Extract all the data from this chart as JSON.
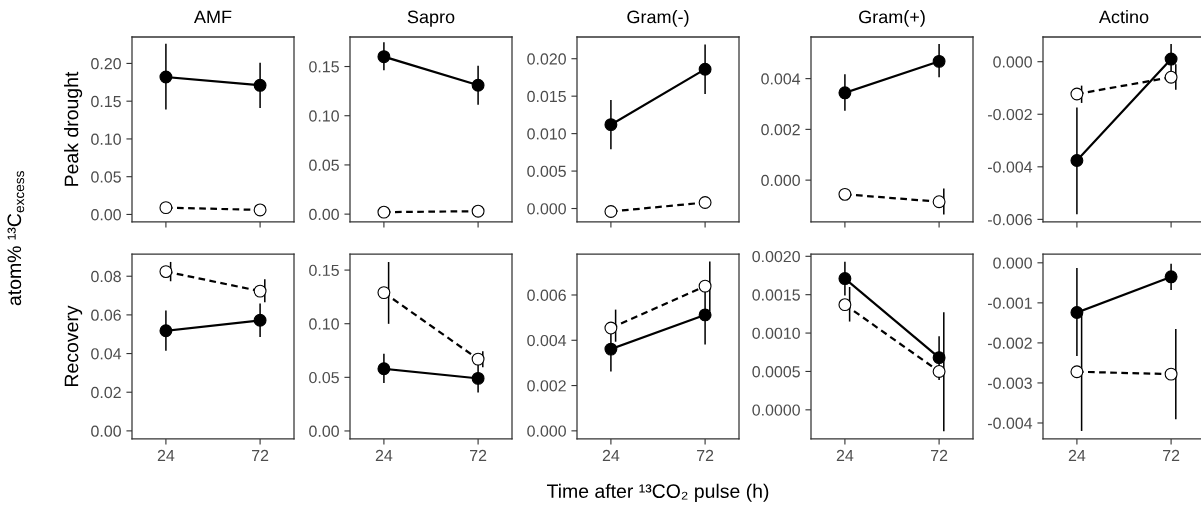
{
  "chart_data": [
    {
      "type": "line",
      "title": "AMF",
      "ylabel": "Peak drought",
      "annotations": [
        "atom% ¹³C$_{excess}$"
      ],
      "categories": [
        "24",
        "72"
      ],
      "tick_labels": "y",
      "marker": "circle",
      "ylim": [
        -0.01,
        0.235
      ],
      "yticks": [
        {
          "value": 0,
          "label": "0.00"
        },
        {
          "value": 0.05,
          "label": "0.05"
        },
        {
          "value": 0.1,
          "label": "0.10"
        },
        {
          "value": 0.15,
          "label": "0.15"
        },
        {
          "value": 0.2,
          "label": "0.20"
        }
      ],
      "series": [
        {
          "color": "#000000",
          "line_style": "solid",
          "values": [
            0.182,
            0.171
          ],
          "errors": [
            [
              0.14,
              0.225
            ],
            [
              0.142,
              0.2
            ]
          ]
        },
        {
          "color": "#000000",
          "line_style": "dashed",
          "values": [
            0.009,
            0.006
          ]
        }
      ]
    },
    {
      "type": "line",
      "title": "Sapro",
      "categories": [
        "24",
        "72"
      ],
      "tick_labels": "y",
      "marker": "circle",
      "ylim": [
        -0.008,
        0.18
      ],
      "yticks": [
        {
          "value": 0,
          "label": "0.00"
        },
        {
          "value": 0.05,
          "label": "0.05"
        },
        {
          "value": 0.1,
          "label": "0.10"
        },
        {
          "value": 0.15,
          "label": "0.15"
        }
      ],
      "series": [
        {
          "color": "#000000",
          "line_style": "solid",
          "values": [
            0.16,
            0.131
          ],
          "errors": [
            [
              0.147,
              0.174
            ],
            [
              0.112,
              0.15
            ]
          ]
        },
        {
          "color": "#000000",
          "line_style": "dashed",
          "values": [
            0.002,
            0.003
          ]
        }
      ]
    },
    {
      "type": "line",
      "title": "Gram(-)",
      "categories": [
        "24",
        "72"
      ],
      "tick_labels": "y",
      "marker": "circle",
      "ylim": [
        -0.0018,
        0.0229
      ],
      "yticks": [
        {
          "value": 0,
          "label": "0.000"
        },
        {
          "value": 0.005,
          "label": "0.005"
        },
        {
          "value": 0.01,
          "label": "0.010"
        },
        {
          "value": 0.015,
          "label": "0.015"
        },
        {
          "value": 0.02,
          "label": "0.020"
        }
      ],
      "series": [
        {
          "color": "#000000",
          "line_style": "solid",
          "values": [
            0.0112,
            0.0186
          ],
          "errors": [
            [
              0.008,
              0.0144
            ],
            [
              0.0154,
              0.0218
            ]
          ]
        },
        {
          "color": "#000000",
          "line_style": "dashed",
          "values": [
            -0.0004,
            0.0008
          ]
        }
      ]
    },
    {
      "type": "line",
      "title": "Gram(+)",
      "categories": [
        "24",
        "72"
      ],
      "tick_labels": "y",
      "marker": "circle",
      "ylim": [
        -0.00165,
        0.00564
      ],
      "yticks": [
        {
          "value": 0,
          "label": "0.000"
        },
        {
          "value": 0.002,
          "label": "0.002"
        },
        {
          "value": 0.004,
          "label": "0.004"
        }
      ],
      "series": [
        {
          "color": "#000000",
          "line_style": "solid",
          "values": [
            0.00344,
            0.00468
          ],
          "errors": [
            [
              0.00276,
              0.00414
            ],
            [
              0.00408,
              0.00533
            ]
          ]
        },
        {
          "color": "#000000",
          "line_style": "dashed",
          "values": [
            -0.00056,
            -0.00085
          ],
          "errors": [
            null,
            [
              -0.00132,
              -0.00036
            ]
          ]
        }
      ]
    },
    {
      "type": "line",
      "title": "Actino",
      "categories": [
        "24",
        "72"
      ],
      "tick_labels": "y",
      "marker": "circle",
      "ylim": [
        -0.0061,
        0.00094
      ],
      "yticks": [
        {
          "value": -0.006,
          "label": "-0.006"
        },
        {
          "value": -0.004,
          "label": "-0.004"
        },
        {
          "value": -0.002,
          "label": "-0.002"
        },
        {
          "value": 0,
          "label": "0.000"
        }
      ],
      "series": [
        {
          "color": "#000000",
          "line_style": "solid",
          "values": [
            -0.00376,
            0.0001
          ],
          "errors": [
            [
              -0.00578,
              -0.00177
            ],
            [
              -0.0005,
              0.00064
            ]
          ]
        },
        {
          "color": "#000000",
          "line_style": "dashed",
          "values": [
            -0.00123,
            -0.00059
          ],
          "errors": [
            [
              -0.00154,
              -0.00094
            ],
            [
              -0.00104,
              -0.00013
            ]
          ]
        }
      ]
    },
    {
      "type": "line",
      "ylabel": "Recovery",
      "categories": [
        "24",
        "72"
      ],
      "marker": "circle",
      "ylim": [
        -0.0042,
        0.0915
      ],
      "yticks": [
        {
          "value": 0,
          "label": "0.00"
        },
        {
          "value": 0.02,
          "label": "0.02"
        },
        {
          "value": 0.04,
          "label": "0.04"
        },
        {
          "value": 0.06,
          "label": "0.06"
        },
        {
          "value": 0.08,
          "label": "0.08"
        }
      ],
      "series": [
        {
          "color": "#000000",
          "line_style": "solid",
          "values": [
            0.0518,
            0.0572
          ],
          "errors": [
            [
              0.0419,
              0.0619
            ],
            [
              0.049,
              0.0655
            ]
          ]
        },
        {
          "color": "#000000",
          "line_style": "dashed",
          "values": [
            0.0824,
            0.0723
          ],
          "errors": [
            [
              0.0778,
              0.087
            ],
            [
              0.0669,
              0.078
            ]
          ]
        }
      ]
    },
    {
      "type": "line",
      "categories": [
        "24",
        "72"
      ],
      "marker": "circle",
      "ylim": [
        -0.0075,
        0.165
      ],
      "yticks": [
        {
          "value": 0,
          "label": "0.00"
        },
        {
          "value": 0.05,
          "label": "0.05"
        },
        {
          "value": 0.1,
          "label": "0.10"
        },
        {
          "value": 0.15,
          "label": "0.15"
        }
      ],
      "series": [
        {
          "color": "#000000",
          "line_style": "solid",
          "values": [
            0.058,
            0.049
          ],
          "errors": [
            [
              0.0455,
              0.0712
            ],
            [
              0.0365,
              0.0608
            ]
          ]
        },
        {
          "color": "#000000",
          "line_style": "dashed",
          "values": [
            0.129,
            0.067
          ],
          "errors": [
            [
              0.1006,
              0.1568
            ],
            [
              0.0601,
              0.0737
            ]
          ]
        }
      ]
    },
    {
      "type": "line",
      "xlabel": "Time after ¹³CO₂ pulse (h)",
      "categories": [
        "24",
        "72"
      ],
      "marker": "circle",
      "ylim": [
        -0.00036,
        0.00781
      ],
      "yticks": [
        {
          "value": 0,
          "label": "0.000"
        },
        {
          "value": 0.002,
          "label": "0.002"
        },
        {
          "value": 0.004,
          "label": "0.004"
        },
        {
          "value": 0.006,
          "label": "0.006"
        }
      ],
      "series": [
        {
          "color": "#000000",
          "line_style": "solid",
          "values": [
            0.00361,
            0.00512
          ],
          "errors": [
            [
              0.00266,
              0.0044
            ],
            [
              0.00385,
              0.0062
            ]
          ]
        },
        {
          "color": "#000000",
          "line_style": "dashed",
          "values": [
            0.00454,
            0.00639
          ],
          "errors": [
            [
              0.00397,
              0.00532
            ],
            [
              0.00532,
              0.00744
            ]
          ]
        }
      ]
    },
    {
      "type": "line",
      "categories": [
        "24",
        "72"
      ],
      "marker": "circle",
      "ylim": [
        -0.00038,
        0.00203
      ],
      "yticks": [
        {
          "value": 0,
          "label": "0.0000"
        },
        {
          "value": 0.0005,
          "label": "0.0005"
        },
        {
          "value": 0.001,
          "label": "0.0010"
        },
        {
          "value": 0.0015,
          "label": "0.0015"
        },
        {
          "value": 0.002,
          "label": "0.0020"
        }
      ],
      "series": [
        {
          "color": "#000000",
          "line_style": "solid",
          "values": [
            0.00171,
            0.00068
          ],
          "errors": [
            [
              0.0015,
              0.00192
            ],
            [
              0.0004,
              0.00095
            ]
          ]
        },
        {
          "color": "#000000",
          "line_style": "dashed",
          "values": [
            0.00137,
            0.0005
          ],
          "errors": [
            [
              0.00116,
              0.00159
            ],
            [
              -0.00027,
              0.00126
            ]
          ]
        }
      ]
    },
    {
      "type": "line",
      "categories": [
        "24",
        "72"
      ],
      "marker": "circle",
      "ylim": [
        -0.0044,
        0.00022
      ],
      "yticks": [
        {
          "value": -0.004,
          "label": "-0.004"
        },
        {
          "value": -0.003,
          "label": "-0.003"
        },
        {
          "value": -0.002,
          "label": "-0.002"
        },
        {
          "value": -0.001,
          "label": "-0.001"
        },
        {
          "value": 0,
          "label": "0.000"
        }
      ],
      "series": [
        {
          "color": "#000000",
          "line_style": "solid",
          "values": [
            -0.00124,
            -0.00035
          ],
          "errors": [
            [
              -0.00231,
              -0.00015
            ],
            [
              -0.00066,
              -4e-05
            ]
          ]
        },
        {
          "color": "#000000",
          "line_style": "dashed",
          "values": [
            -0.00272,
            -0.00278
          ],
          "errors": [
            [
              -0.00418,
              -0.0013
            ],
            [
              -0.00389,
              -0.00167
            ]
          ]
        }
      ]
    }
  ]
}
